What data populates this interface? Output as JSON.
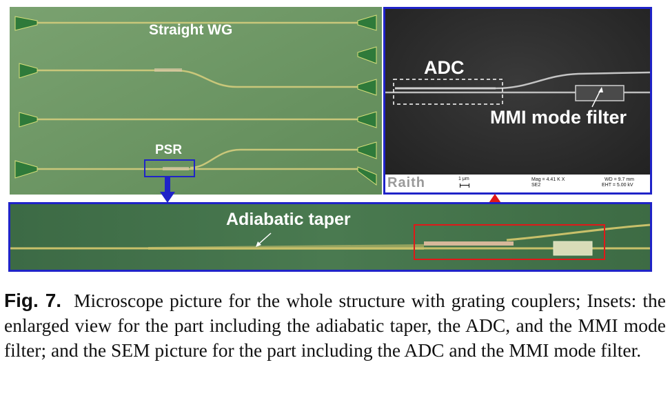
{
  "figure": {
    "top_panel": {
      "straight_label": "Straight WG",
      "psr_label": "PSR"
    },
    "sem_panel": {
      "adc_label": "ADC",
      "mmi_label": "MMI mode filter",
      "logo_text": "Raith",
      "scale_text": "1 μm",
      "mag_text": "Mag =  4.41 K X",
      "detector_text": "SE2",
      "wd_text": "WD =  9.7 mm",
      "eht_text": "EHT =  5.00 kV"
    },
    "enlarged_panel": {
      "taper_label": "Adiabatic taper"
    },
    "colors": {
      "inset_frame": "#1f23c8",
      "highlight_box": "#e01818",
      "arrow_blue": "#1f23c8",
      "arrow_red": "#e01818"
    }
  },
  "caption": {
    "label": "Fig. 7.",
    "text": "Microscope picture for the whole structure with grating couplers; Insets: the enlarged view for the part including the adiabatic taper, the ADC, and the MMI mode filter; and the SEM picture for the part including the ADC and the MMI mode filter."
  }
}
